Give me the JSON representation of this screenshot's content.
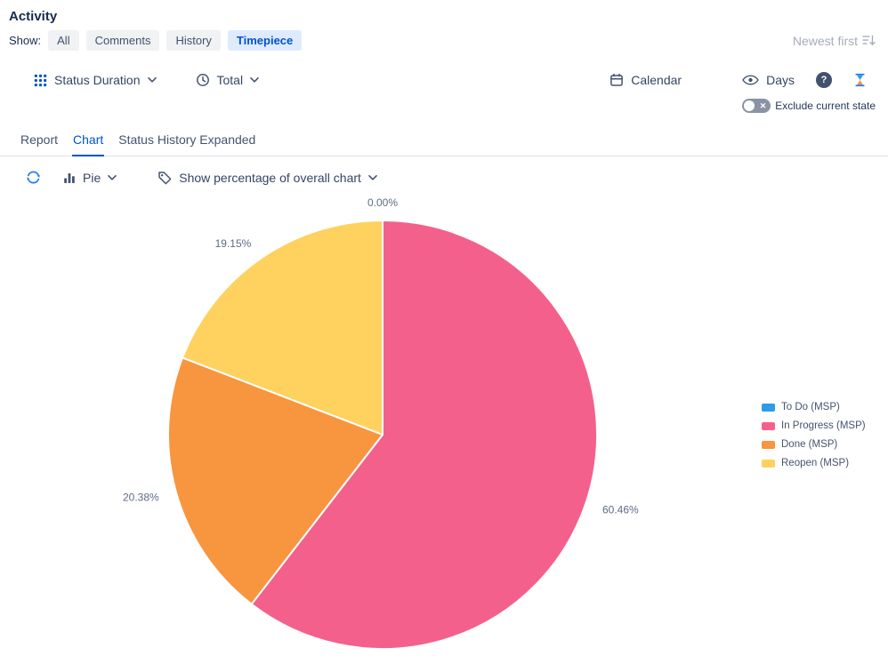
{
  "header": {
    "title": "Activity",
    "show_label": "Show:",
    "filters": {
      "all": "All",
      "comments": "Comments",
      "history": "History",
      "timepiece": "Timepiece"
    },
    "sort_label": "Newest first"
  },
  "toolbar": {
    "metric_label": "Status Duration",
    "aggregation_label": "Total",
    "calendar_label": "Calendar",
    "days_label": "Days",
    "help_label": "?",
    "exclude_toggle_label": "Exclude current state",
    "exclude_toggle_state": "off"
  },
  "tabs": {
    "report": "Report",
    "chart": "Chart",
    "status_history": "Status History Expanded",
    "active_tab": "Chart"
  },
  "chart_controls": {
    "chart_type_label": "Pie",
    "display_mode_label": "Show percentage of overall chart"
  },
  "chart_data": {
    "type": "pie",
    "unit": "percent",
    "legend_position": "right",
    "start_angle_deg": 0,
    "direction": "clockwise",
    "series": [
      {
        "name": "To Do (MSP)",
        "value": 0.0,
        "label": "0.00%",
        "color": "#2D9CE8"
      },
      {
        "name": "In Progress (MSP)",
        "value": 60.46,
        "label": "60.46%",
        "color": "#F4608C"
      },
      {
        "name": "Done (MSP)",
        "value": 20.38,
        "label": "20.38%",
        "color": "#F8953F"
      },
      {
        "name": "Reopen (MSP)",
        "value": 19.15,
        "label": "19.15%",
        "color": "#FFD15E"
      }
    ]
  },
  "colors": {
    "accent": "#0052CC",
    "toolbar_icon": "#44546F",
    "muted": "#A5ADBA"
  }
}
